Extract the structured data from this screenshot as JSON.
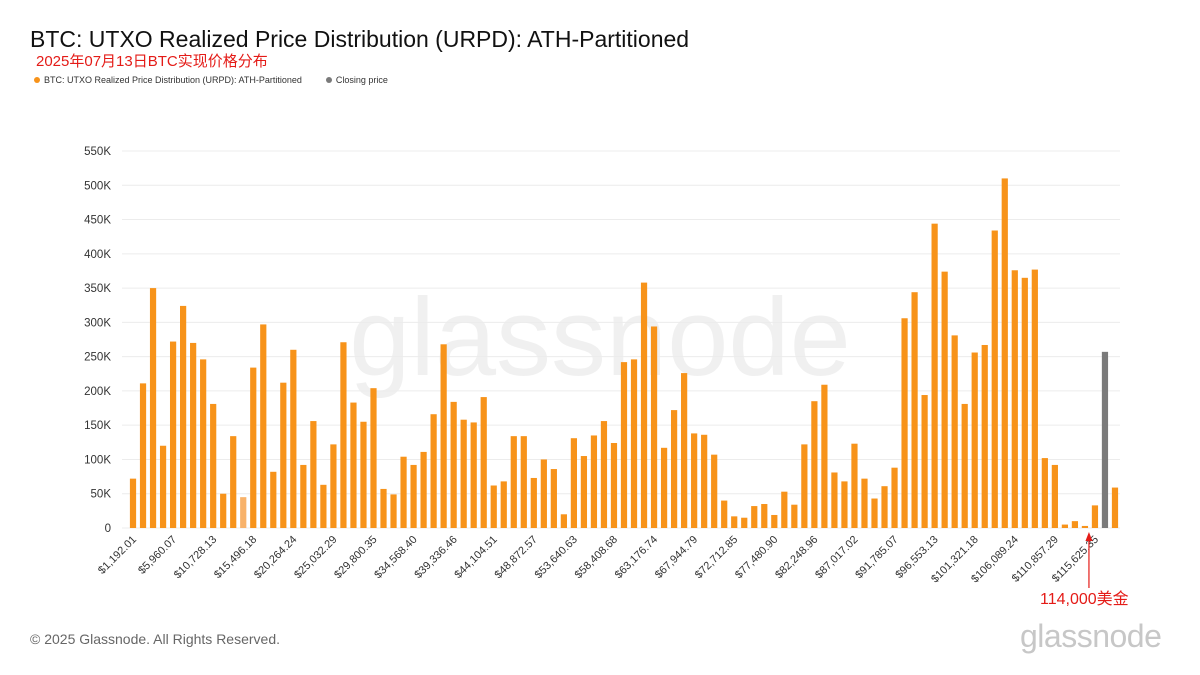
{
  "header": {
    "title": "BTC: UTXO Realized Price Distribution (URPD): ATH-Partitioned",
    "subtitle_cn": "2025年07月13日BTC实现价格分布"
  },
  "legend": {
    "items": [
      {
        "label": "BTC: UTXO Realized Price Distribution (URPD): ATH-Partitioned",
        "color": "#f7931a"
      },
      {
        "label": "Closing price",
        "color": "#7a7a7a"
      }
    ]
  },
  "watermark": "glassnode",
  "footer": {
    "copyright": "© 2025 Glassnode. All Rights Reserved.",
    "logo": "glassnode"
  },
  "annotation": {
    "label": "114,000美金",
    "color": "#e41b17"
  },
  "chart_data": {
    "type": "bar",
    "ylim": [
      0,
      550000
    ],
    "y_ticks": [
      0,
      50000,
      100000,
      150000,
      200000,
      250000,
      300000,
      350000,
      400000,
      450000,
      500000,
      550000
    ],
    "y_tick_labels": [
      "0",
      "50K",
      "100K",
      "150K",
      "200K",
      "250K",
      "300K",
      "350K",
      "400K",
      "450K",
      "500K",
      "550K"
    ],
    "x_tick_labels": [
      "$1,192.01",
      "$5,960.07",
      "$10,728.13",
      "$15,496.18",
      "$20,264.24",
      "$25,032.29",
      "$29,800.35",
      "$34,568.40",
      "$39,336.46",
      "$44,104.51",
      "$48,872.57",
      "$53,640.63",
      "$58,408.68",
      "$63,176.74",
      "$67,944.79",
      "$72,712.85",
      "$77,480.90",
      "$82,248.96",
      "$87,017.02",
      "$91,785.07",
      "$96,553.13",
      "$101,321.18",
      "$106,089.24",
      "$110,857.29",
      "$115,625.35"
    ],
    "grid": true,
    "colors": {
      "bar": "#f7931a",
      "highlight": "#f8b26a",
      "closing": "#7a7a7a",
      "grid": "#ececec",
      "axis_text": "#333333"
    },
    "highlight_index": 11,
    "closing_index": 97,
    "annotation_index": 96,
    "series": [
      {
        "name": "BTC: UTXO Realized Price Distribution (URPD): ATH-Partitioned",
        "values": [
          72000,
          211000,
          350000,
          120000,
          272000,
          324000,
          270000,
          246000,
          181000,
          50000,
          134000,
          45000,
          234000,
          297000,
          82000,
          212000,
          260000,
          92000,
          156000,
          63000,
          122000,
          271000,
          183000,
          155000,
          204000,
          57000,
          49000,
          104000,
          92000,
          111000,
          166000,
          268000,
          184000,
          158000,
          154000,
          191000,
          62000,
          68000,
          134000,
          134000,
          73000,
          100000,
          86000,
          20000,
          131000,
          105000,
          135000,
          156000,
          124000,
          242000,
          246000,
          358000,
          294000,
          117000,
          172000,
          226000,
          138000,
          136000,
          107000,
          40000,
          17000,
          15000,
          32000,
          35000,
          19000,
          53000,
          34000,
          122000,
          185000,
          209000,
          81000,
          68000,
          123000,
          72000,
          43000,
          61000,
          88000,
          306000,
          344000,
          194000,
          444000,
          374000,
          281000,
          181000,
          256000,
          267000,
          434000,
          510000,
          376000,
          365000,
          377000,
          102000,
          92000,
          5000,
          10000,
          3000,
          33000,
          257000,
          59000
        ]
      }
    ]
  }
}
